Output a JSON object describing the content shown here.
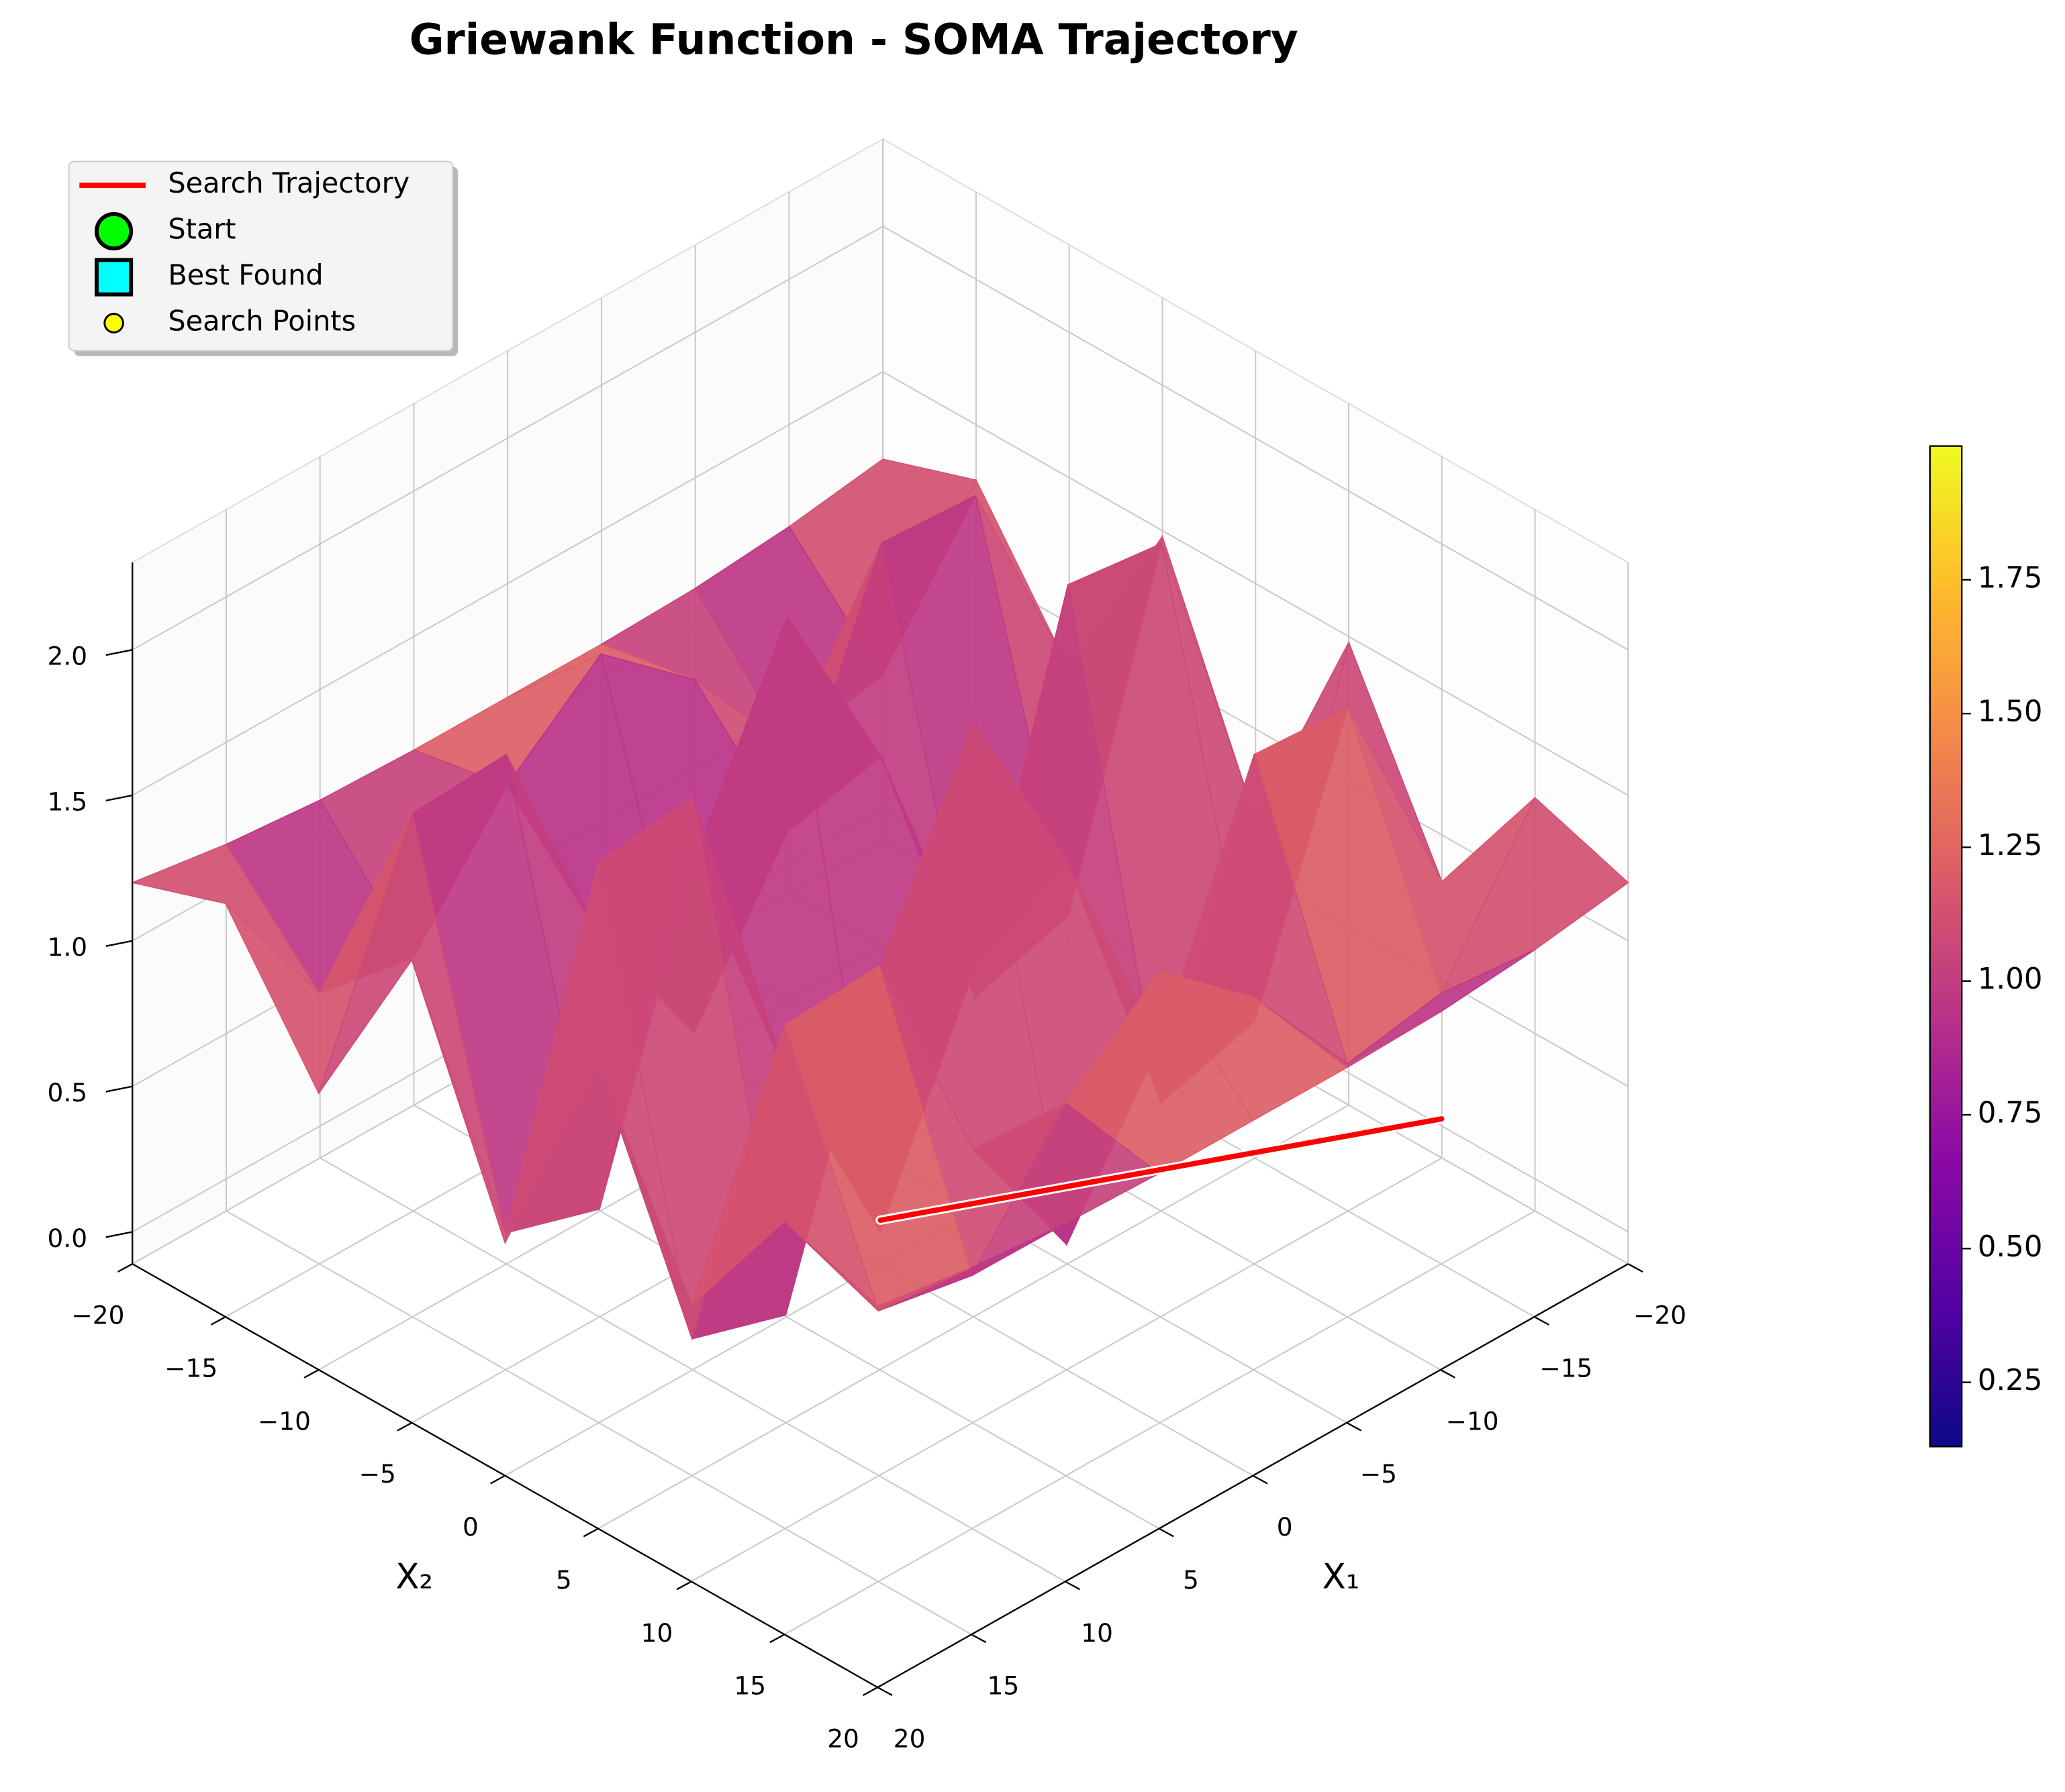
{
  "chart_data": {
    "type": "surface3d",
    "title": "Griewank Function - SOMA Trajectory",
    "xlabel": "X₁",
    "ylabel": "X₂",
    "colormap": "plasma",
    "x1": [
      -20,
      -15,
      -10,
      -5,
      0,
      5,
      10,
      15,
      20
    ],
    "x2": [
      -20,
      -15,
      -10,
      -5,
      0,
      5,
      10,
      15,
      20
    ],
    "z": [
      [
        1.2,
        1.15,
        1.12,
        1.11,
        1.11,
        1.11,
        1.12,
        1.15,
        1.2
      ],
      [
        1.31,
        0.82,
        0.76,
        1.17,
        1.44,
        1.17,
        0.76,
        0.82,
        1.31
      ],
      [
        0.84,
        1.62,
        1.64,
        0.83,
        0.32,
        0.83,
        1.64,
        1.62,
        0.84
      ],
      [
        1.48,
        0.36,
        0.26,
        1.27,
        1.93,
        1.27,
        0.26,
        0.36,
        1.48
      ],
      [
        0.69,
        1.82,
        1.86,
        0.72,
        0,
        0.72,
        1.86,
        1.82,
        0.69
      ],
      [
        1.48,
        0.36,
        0.26,
        1.27,
        1.93,
        1.27,
        0.26,
        0.36,
        1.48
      ],
      [
        0.84,
        1.62,
        1.64,
        0.83,
        0.32,
        0.83,
        1.64,
        1.62,
        0.84
      ],
      [
        1.31,
        0.82,
        0.76,
        1.17,
        1.44,
        1.17,
        0.76,
        0.82,
        1.31
      ],
      [
        1.2,
        1.15,
        1.12,
        1.11,
        1.11,
        1.11,
        1.12,
        1.15,
        1.2
      ]
    ],
    "trajectory": {
      "name": "Search Trajectory",
      "color": "#ff0000",
      "x1": [
        -18,
        0
      ],
      "x2": [
        12,
        0
      ],
      "z": [
        0.17,
        0.04
      ]
    },
    "legend": [
      {
        "name": "Search Trajectory",
        "marker": "line",
        "color": "#ff0000"
      },
      {
        "name": "Start",
        "marker": "circle",
        "color": "#00ff00"
      },
      {
        "name": "Best Found",
        "marker": "square",
        "color": "#00ffff"
      },
      {
        "name": "Search Points",
        "marker": "dot",
        "color": "#ffff00"
      }
    ],
    "legend_position": "upper left",
    "xlim": [
      -20,
      20
    ],
    "xticks": [
      {
        "value": -20,
        "label": "−20"
      },
      {
        "value": -15,
        "label": "−15"
      },
      {
        "value": -10,
        "label": "−10"
      },
      {
        "value": -5,
        "label": "−5"
      },
      0,
      5,
      10,
      15,
      20
    ],
    "ylim": [
      -20,
      20
    ],
    "yticks": [
      {
        "value": -20,
        "label": "−20"
      },
      {
        "value": -15,
        "label": "−15"
      },
      {
        "value": -10,
        "label": "−10"
      },
      {
        "value": -5,
        "label": "−5"
      },
      0,
      5,
      10,
      15,
      20
    ],
    "zlim": [
      -0.11,
      2.3
    ],
    "zticks": [
      {
        "value": 0,
        "label": "0.0"
      },
      0.5,
      {
        "value": 1,
        "label": "1.0"
      },
      1.5,
      {
        "value": 2,
        "label": "2.0"
      }
    ],
    "clim": [
      0.13,
      2.0
    ],
    "cticks": [
      0.25,
      {
        "value": 0.5,
        "label": "0.50"
      },
      0.75,
      {
        "value": 1,
        "label": "1.00"
      },
      1.25,
      {
        "value": 1.5,
        "label": "1.50"
      },
      1.75
    ],
    "grid": true
  }
}
